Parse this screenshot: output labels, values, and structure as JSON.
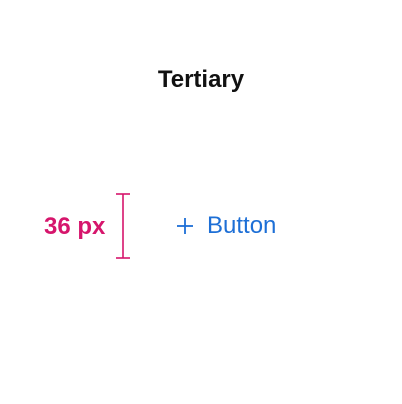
{
  "title": "Tertiary",
  "measurement": {
    "label": "36 px"
  },
  "button": {
    "icon": "plus-icon",
    "label": "Button"
  },
  "colors": {
    "title": "#111111",
    "measurement": "#d6156c",
    "accent": "#1d6fd6"
  }
}
